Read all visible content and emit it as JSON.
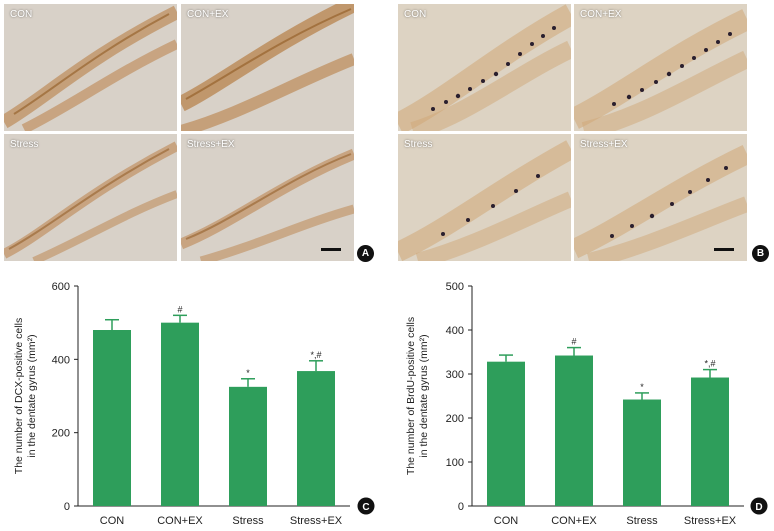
{
  "panels": {
    "A": {
      "badge": "A",
      "images": [
        {
          "label": "CON"
        },
        {
          "label": "CON+EX"
        },
        {
          "label": "Stress"
        },
        {
          "label": "Stress+EX"
        }
      ]
    },
    "B": {
      "badge": "B",
      "images": [
        {
          "label": "CON"
        },
        {
          "label": "CON+EX"
        },
        {
          "label": "Stress"
        },
        {
          "label": "Stress+EX"
        }
      ]
    }
  },
  "chart_data": [
    {
      "panel": "C",
      "type": "bar",
      "badge": "C",
      "categories": [
        "CON",
        "CON+EX",
        "Stress",
        "Stress+EX"
      ],
      "values": [
        480,
        500,
        325,
        368
      ],
      "errors": [
        28,
        20,
        22,
        28
      ],
      "annotations": [
        "",
        "#",
        "*",
        "*,#"
      ],
      "ylabel_line1": "The number of DCX-positive cells",
      "ylabel_line2": "in the dentate gyrus (mm²)",
      "ylim": [
        0,
        600
      ],
      "yticks": [
        0,
        200,
        400,
        600
      ],
      "bar_color": "#2e9e5b"
    },
    {
      "panel": "D",
      "type": "bar",
      "badge": "D",
      "categories": [
        "CON",
        "CON+EX",
        "Stress",
        "Stress+EX"
      ],
      "values": [
        328,
        342,
        242,
        292
      ],
      "errors": [
        15,
        18,
        15,
        18
      ],
      "annotations": [
        "",
        "#",
        "*",
        "*,#"
      ],
      "ylabel_line1": "The number of BrdU-positive cells",
      "ylabel_line2": "in the dentate gyrus (mm²)",
      "ylim": [
        0,
        500
      ],
      "yticks": [
        0,
        100,
        200,
        300,
        400,
        500
      ],
      "bar_color": "#2e9e5b"
    }
  ]
}
